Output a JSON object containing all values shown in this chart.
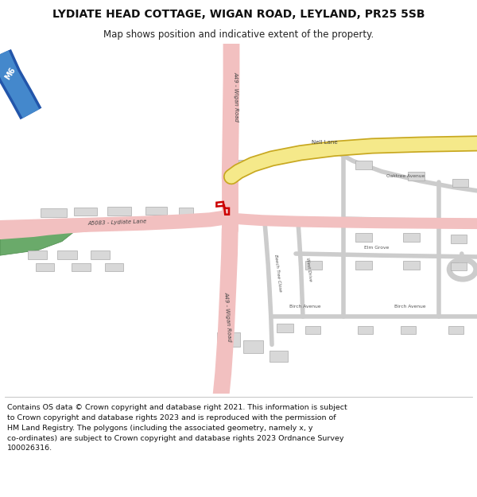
{
  "title_line1": "LYDIATE HEAD COTTAGE, WIGAN ROAD, LEYLAND, PR25 5SB",
  "title_line2": "Map shows position and indicative extent of the property.",
  "footer_lines": [
    "Contains OS data © Crown copyright and database right 2021. This information is subject",
    "to Crown copyright and database rights 2023 and is reproduced with the permission of",
    "HM Land Registry. The polygons (including the associated geometry, namely x, y",
    "co-ordinates) are subject to Crown copyright and database rights 2023 Ordnance Survey",
    "100026316."
  ],
  "bg_color": "#ffffff",
  "road_pink": "#f2c0c0",
  "road_pink_light": "#f8dada",
  "road_yellow": "#f5e98a",
  "road_yellow_border": "#c8a820",
  "road_gray": "#cccccc",
  "green_area": "#6aaa6a",
  "property_outline": "#cc0000",
  "building_fill": "#d8d8d8",
  "building_outline": "#aaaaaa",
  "m6_dark": "#2255aa",
  "m6_light": "#4488cc"
}
